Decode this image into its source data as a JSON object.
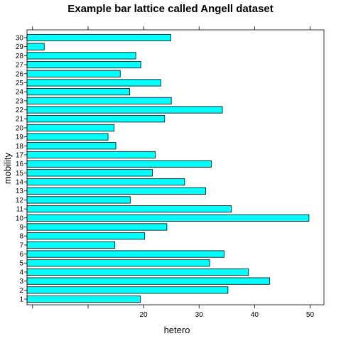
{
  "chart_data": {
    "type": "bar",
    "orientation": "horizontal",
    "title": "Example bar lattice called Angell dataset",
    "xlabel": "hetero",
    "ylabel": "mobility",
    "xlim": [
      -1,
      52.5
    ],
    "xticks": [
      0,
      10,
      20,
      30,
      40,
      50
    ],
    "xtick_labels": [
      "",
      "",
      "20",
      "30",
      "40",
      "50"
    ],
    "categories": [
      "1",
      "2",
      "3",
      "4",
      "5",
      "6",
      "7",
      "8",
      "9",
      "10",
      "11",
      "12",
      "13",
      "14",
      "15",
      "16",
      "17",
      "18",
      "19",
      "20",
      "21",
      "22",
      "23",
      "24",
      "25",
      "26",
      "27",
      "28",
      "29",
      "30"
    ],
    "values": [
      19.4,
      35.2,
      42.7,
      38.9,
      31.9,
      34.5,
      14.8,
      20.2,
      24.2,
      49.8,
      35.8,
      17.6,
      31.2,
      27.4,
      21.6,
      32.2,
      22.1,
      15.0,
      13.6,
      14.7,
      23.8,
      34.2,
      25.0,
      17.5,
      23.1,
      15.8,
      19.5,
      18.6,
      2.1,
      24.9
    ],
    "bar_color": "#00ffff",
    "grid": false
  }
}
